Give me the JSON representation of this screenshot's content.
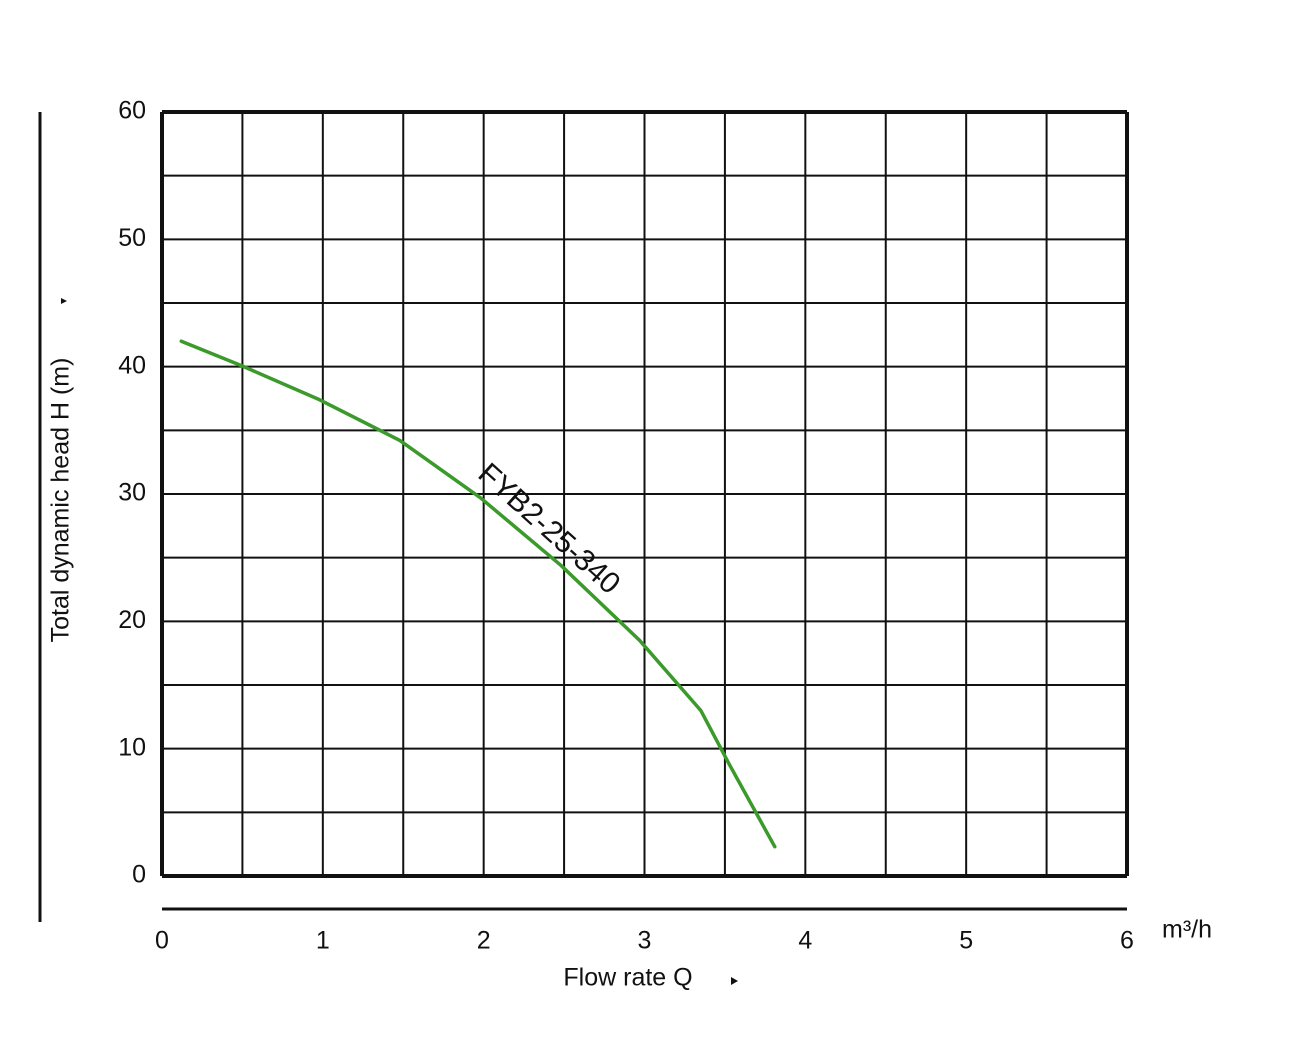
{
  "chart_data": {
    "type": "line",
    "x_label": "Flow rate Q",
    "y_label": "Total dynamic head H (m)",
    "x_unit": "m³/h",
    "annotation": "FYB2-25-340",
    "series": [
      {
        "name": "FYB2-25-340",
        "color": "#3a9a2a",
        "x": [
          0.12,
          0.49,
          0.98,
          1.48,
          1.98,
          2.48,
          2.97,
          3.35,
          3.53,
          3.81
        ],
        "values": [
          42.0,
          40.1,
          37.4,
          34.2,
          29.7,
          24.4,
          18.5,
          13.0,
          8.7,
          2.3
        ]
      }
    ],
    "xlim": [
      0,
      6
    ],
    "xticks": [
      0,
      1,
      2,
      3,
      4,
      5,
      6
    ],
    "x_minor_ticks": [
      0.5,
      1.5,
      2.5,
      3.5,
      4.5,
      5.5
    ],
    "ylim": [
      0,
      60
    ],
    "yticks": [
      0,
      10,
      20,
      30,
      40,
      50,
      60
    ],
    "y_minor_ticks": [
      5,
      15,
      25,
      35,
      45,
      55
    ],
    "grid": true
  }
}
